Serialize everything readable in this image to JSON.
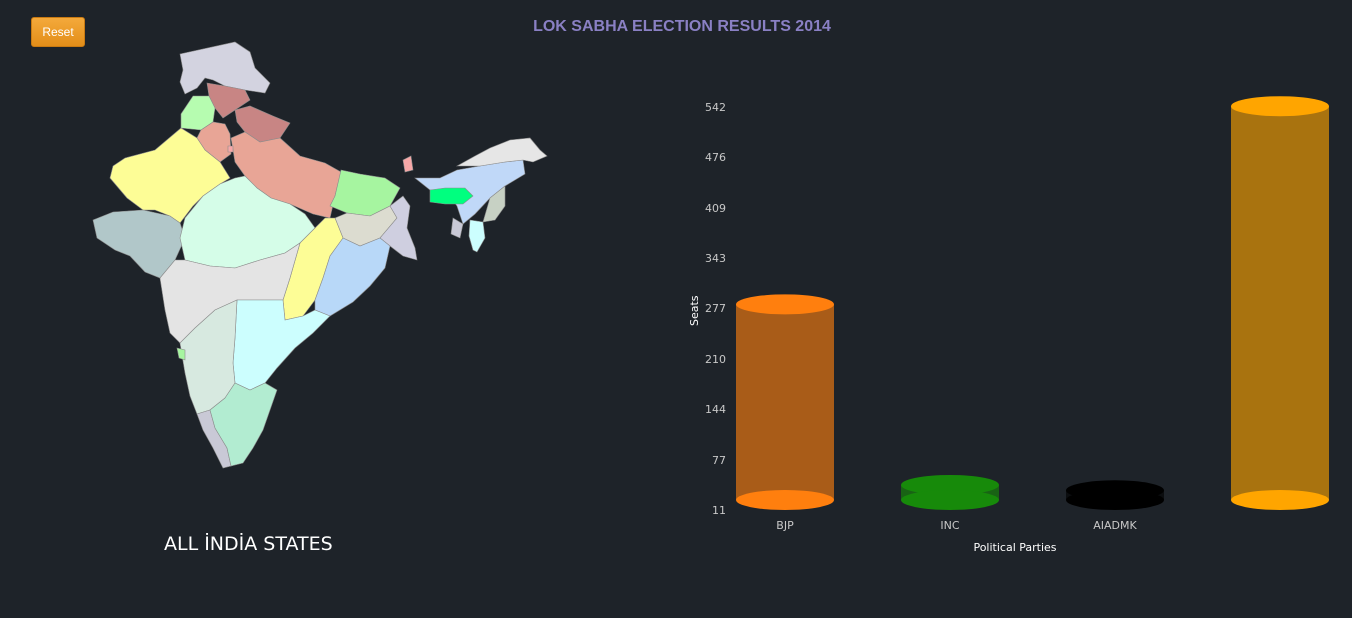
{
  "header": {
    "reset_label": "Reset",
    "title": "LOK SABHA ELECTION RESULTS 2014"
  },
  "map": {
    "caption": "ALL İNDİA STATES"
  },
  "chart_data": {
    "type": "bar",
    "categories": [
      "BJP",
      "INC",
      "AIADMK",
      ""
    ],
    "values": [
      282,
      44,
      37,
      543
    ],
    "colors": [
      "#ff7f0e",
      "#178a0a",
      "#000000",
      "#ffa500"
    ],
    "xlabel": "Political Parties",
    "ylabel": "Seats",
    "yticks": [
      "542",
      "476",
      "409",
      "343",
      "277",
      "210",
      "144",
      "77",
      "11"
    ],
    "ylim": [
      11,
      542
    ]
  }
}
